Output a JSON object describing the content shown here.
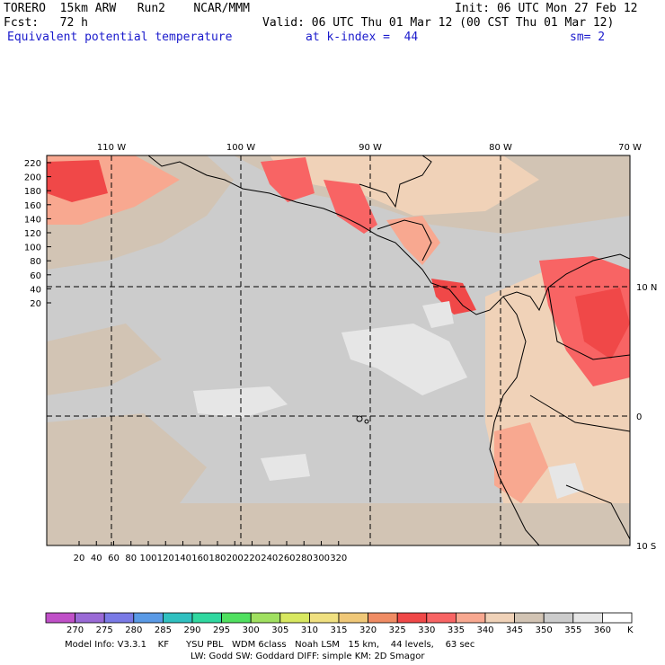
{
  "header": {
    "model": "TORERO  15km ARW   Run2    NCAR/MMM",
    "init": "Init: 06 UTC Mon 27 Feb 12",
    "forecast": "Fcst:   72 h",
    "valid": "Valid: 06 UTC Thu 01 Mar 12 (00 CST Thu 01 Mar 12)",
    "field": "Equivalent potential temperature",
    "level": "at k-index =  44",
    "smooth": "sm= 2"
  },
  "map": {
    "top_lon_labels": [
      "110 W",
      "100 W",
      "90 W",
      "80 W",
      "70 W"
    ],
    "right_lat_labels": [
      "10 N",
      "0",
      "10 S"
    ],
    "y_ticks": [
      "220",
      "200",
      "180",
      "160",
      "140",
      "120",
      "100",
      "80",
      "60",
      "40",
      "20"
    ],
    "x_ticks": [
      "20",
      "40",
      "60",
      "80",
      "100",
      "120",
      "140",
      "160",
      "180",
      "200",
      "220",
      "240",
      "260",
      "280",
      "300",
      "320"
    ],
    "dominant_field_color": "#cccccc"
  },
  "colorbar": {
    "labels": [
      "270",
      "275",
      "280",
      "285",
      "290",
      "295",
      "300",
      "305",
      "310",
      "315",
      "320",
      "325",
      "330",
      "335",
      "340",
      "345",
      "350",
      "355",
      "360"
    ],
    "unit": "K",
    "colors": [
      "#c050c8",
      "#9a6ad6",
      "#7a7ae6",
      "#5a9ae6",
      "#30c0c0",
      "#30d8a0",
      "#50e060",
      "#a0e060",
      "#d8e860",
      "#f0e080",
      "#f0c878",
      "#f08c64",
      "#f04848",
      "#f86464",
      "#f8a890",
      "#f0d2b8",
      "#d2c4b4",
      "#cccccc",
      "#e6e6e6",
      "#ffffff"
    ]
  },
  "footer": {
    "line1": "Model Info: V3.3.1    KF      YSU PBL   WDM 6class   Noah LSM   15 km,    44 levels,    63 sec",
    "line2": "LW: Godd SW: Goddard DIFF: simple KM: 2D Smagor"
  }
}
